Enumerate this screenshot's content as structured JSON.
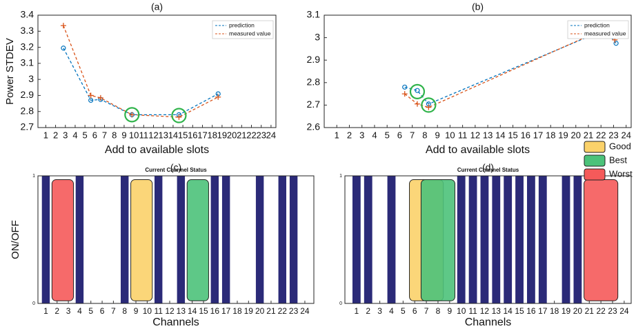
{
  "legend": [
    {
      "name": "Good",
      "color": "#fbd26a"
    },
    {
      "name": "Best",
      "color": "#4cc27a"
    },
    {
      "name": "Worst",
      "color": "#f55a5a"
    }
  ],
  "chart_data": [
    {
      "type": "line",
      "title": "(a)",
      "xlabel": "Add to available slots",
      "ylabel": "Power STDEV",
      "xlim": [
        0.2,
        24.5
      ],
      "ylim": [
        2.7,
        3.4
      ],
      "xticks": [
        1,
        2,
        3,
        4,
        5,
        6,
        7,
        8,
        9,
        10,
        11,
        12,
        13,
        14,
        15,
        16,
        17,
        18,
        19,
        20,
        21,
        22,
        23,
        24
      ],
      "yticks": [
        2.7,
        2.8,
        2.9,
        3,
        3.1,
        3.2,
        3.3,
        3.4
      ],
      "legend_position": "upper right",
      "series": [
        {
          "name": "prediction",
          "color": "#0072bd",
          "marker": "o",
          "x": [
            2.8,
            5.6,
            6.6,
            9.8,
            14.6,
            18.6
          ],
          "values": [
            3.195,
            2.87,
            2.875,
            2.78,
            2.78,
            2.91
          ]
        },
        {
          "name": "measured value",
          "color": "#d95319",
          "marker": "+",
          "x": [
            2.8,
            5.6,
            6.6,
            9.8,
            14.6,
            18.6
          ],
          "values": [
            3.335,
            2.9,
            2.885,
            2.78,
            2.765,
            2.89
          ]
        }
      ],
      "circles": [
        {
          "x": 9.8,
          "y": 2.78
        },
        {
          "x": 14.6,
          "y": 2.775
        }
      ]
    },
    {
      "type": "line",
      "title": "(b)",
      "xlabel": "Add to available slots",
      "xlim": [
        0,
        24.4
      ],
      "ylim": [
        2.6,
        3.1
      ],
      "xticks": [
        1,
        2,
        3,
        4,
        5,
        6,
        7,
        8,
        9,
        10,
        11,
        12,
        13,
        14,
        15,
        16,
        17,
        18,
        19,
        20,
        21,
        22,
        23,
        24
      ],
      "yticks": [
        2.6,
        2.7,
        2.8,
        2.9,
        3,
        3.1
      ],
      "legend_position": "upper right",
      "series": [
        {
          "name": "prediction",
          "color": "#0072bd",
          "marker": "o",
          "x": [
            6.4,
            7.4,
            8.3,
            22.3,
            23.2
          ],
          "values": [
            2.78,
            2.765,
            2.705,
            3.035,
            2.975
          ]
        },
        {
          "name": "measured value",
          "color": "#d95319",
          "marker": "+",
          "x": [
            6.4,
            7.4,
            8.3,
            22.3,
            23.1
          ],
          "values": [
            2.75,
            2.705,
            2.69,
            3.04,
            2.99
          ]
        }
      ],
      "circles": [
        {
          "x": 7.4,
          "y": 2.76
        },
        {
          "x": 8.3,
          "y": 2.7
        }
      ]
    },
    {
      "type": "bar",
      "title": "(c)",
      "subtitle": "Current Channel Status",
      "xlabel": "Channels",
      "ylabel": "ON/OFF",
      "xlim": [
        0.3,
        24.8
      ],
      "ylim": [
        0,
        1
      ],
      "xticks": [
        1,
        2,
        3,
        4,
        5,
        6,
        7,
        8,
        9,
        10,
        11,
        12,
        13,
        14,
        15,
        16,
        17,
        18,
        19,
        20,
        21,
        22,
        23,
        24
      ],
      "yticks": [
        0,
        1
      ],
      "color": "#2b2a78",
      "x": [
        1,
        2,
        3,
        4,
        5,
        6,
        7,
        8,
        9,
        10,
        11,
        12,
        13,
        14,
        15,
        16,
        17,
        18,
        19,
        20,
        21,
        22,
        23,
        24
      ],
      "values": [
        1,
        0,
        0,
        1,
        0,
        0,
        0,
        1,
        0,
        0,
        1,
        0,
        1,
        0,
        0,
        1,
        1,
        0,
        0,
        1,
        0,
        1,
        1,
        0
      ],
      "highlights": [
        [
          9,
          10
        ],
        [
          14,
          15
        ],
        [
          2,
          3
        ]
      ]
    },
    {
      "type": "bar",
      "title": "(d)",
      "subtitle": "Current Channel Status",
      "xlabel": "Channels",
      "xlim": [
        0,
        24.6
      ],
      "ylim": [
        0,
        1
      ],
      "xticks": [
        1,
        2,
        3,
        4,
        5,
        6,
        7,
        8,
        9,
        10,
        11,
        12,
        13,
        14,
        15,
        16,
        17,
        18,
        19,
        20,
        21,
        22,
        23,
        24
      ],
      "yticks": [
        0,
        1
      ],
      "color": "#2b2a78",
      "x": [
        1,
        2,
        3,
        4,
        5,
        6,
        7,
        8,
        9,
        10,
        11,
        12,
        13,
        14,
        15,
        16,
        17,
        18,
        19,
        20,
        21,
        22,
        23,
        24
      ],
      "values": [
        1,
        1,
        0,
        1,
        0,
        0,
        0,
        0,
        0,
        1,
        1,
        1,
        1,
        1,
        1,
        1,
        1,
        0,
        1,
        1,
        0,
        0,
        0,
        0
      ],
      "highlights": [
        [
          6,
          8
        ],
        [
          7,
          9
        ],
        [
          21,
          23
        ]
      ]
    }
  ]
}
